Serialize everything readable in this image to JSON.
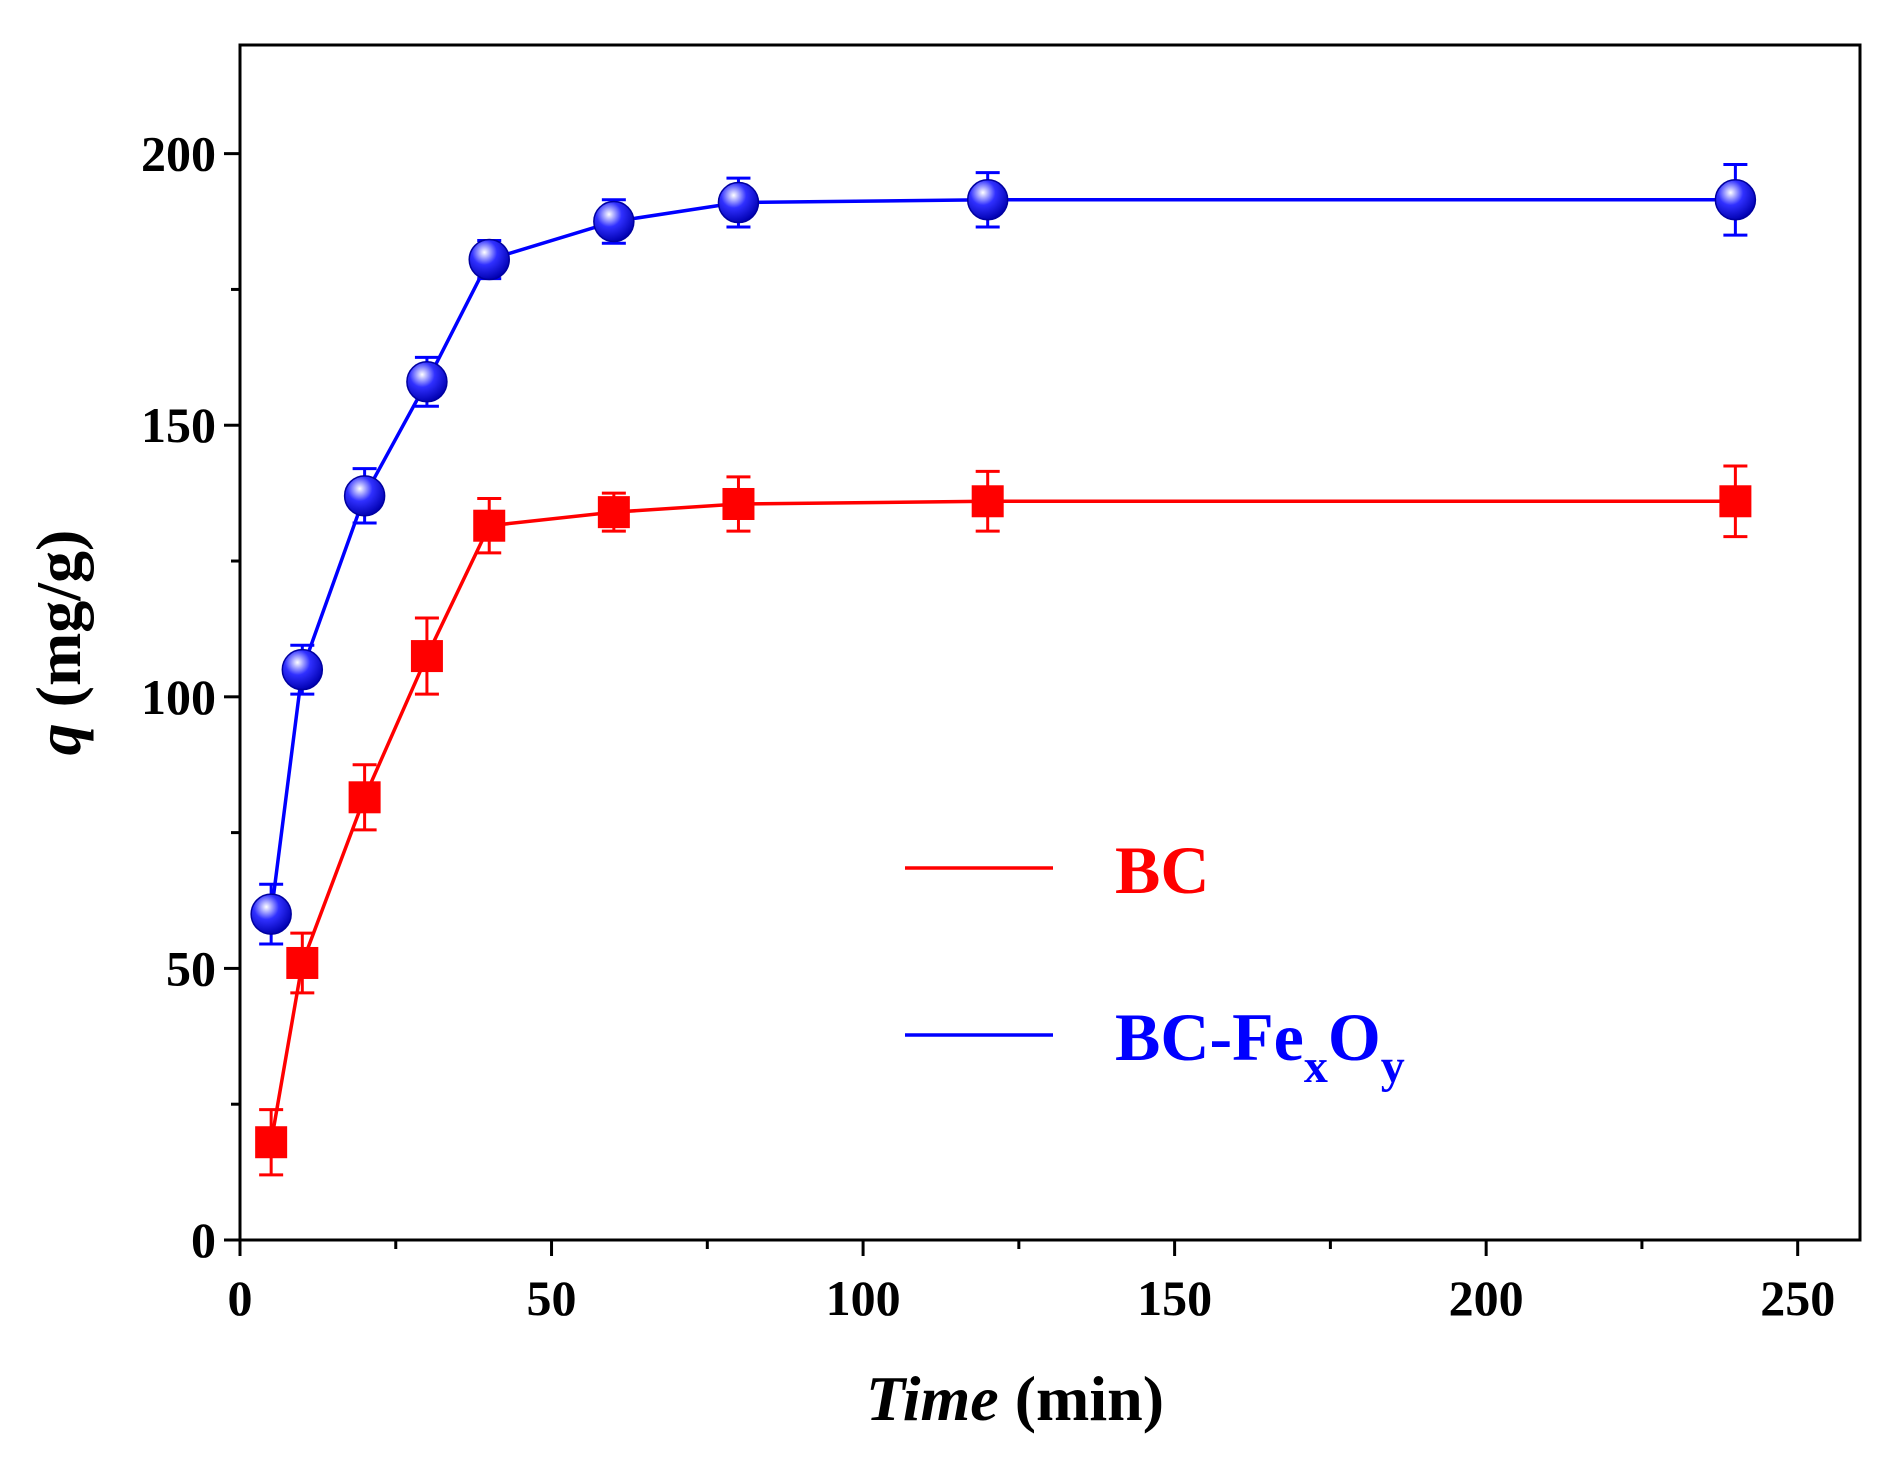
{
  "chart_data": {
    "type": "line",
    "title": "",
    "xlabel": {
      "italic": "Time",
      "rest": " (min)"
    },
    "ylabel": {
      "italic": "q",
      "rest": " (mg/g)"
    },
    "xlim": [
      0,
      260
    ],
    "ylim": [
      0,
      220
    ],
    "x_ticks": [
      0,
      50,
      100,
      150,
      200,
      250
    ],
    "x_tick_labels": [
      "0",
      "50",
      "100",
      "150",
      "200",
      "250"
    ],
    "y_ticks": [
      0,
      50,
      100,
      150,
      200
    ],
    "y_tick_labels": [
      "0",
      "50",
      "100",
      "150",
      "200"
    ],
    "x_minor_ticks": [
      25,
      75,
      125,
      175,
      225
    ],
    "y_minor_ticks": [
      25,
      75,
      125,
      175
    ],
    "grid": false,
    "legend_position": "center-right",
    "series": [
      {
        "name": "BC",
        "label_main": "BC",
        "label_sub": "",
        "label_mid": "",
        "label_sub2": "",
        "color": "#ff0000",
        "marker": "square",
        "x": [
          5,
          10,
          20,
          30,
          40,
          60,
          80,
          120,
          240
        ],
        "y": [
          18,
          51,
          81.5,
          107.5,
          131.5,
          134,
          135.5,
          136,
          136
        ],
        "err": [
          6,
          5.5,
          6,
          7,
          5,
          3.5,
          5,
          5.5,
          6.5
        ]
      },
      {
        "name": "BC-FexOy",
        "label_main": "BC-Fe",
        "label_sub": "x",
        "label_mid": "O",
        "label_sub2": "y",
        "color": "#0000ff",
        "marker": "sphere",
        "x": [
          5,
          10,
          20,
          30,
          40,
          60,
          80,
          120,
          240
        ],
        "y": [
          60,
          105,
          137,
          158,
          180.5,
          187.5,
          191,
          191.5,
          191.5
        ],
        "err": [
          5.5,
          4.5,
          5,
          4.5,
          3.5,
          4,
          4.5,
          5,
          6.5
        ]
      }
    ]
  }
}
